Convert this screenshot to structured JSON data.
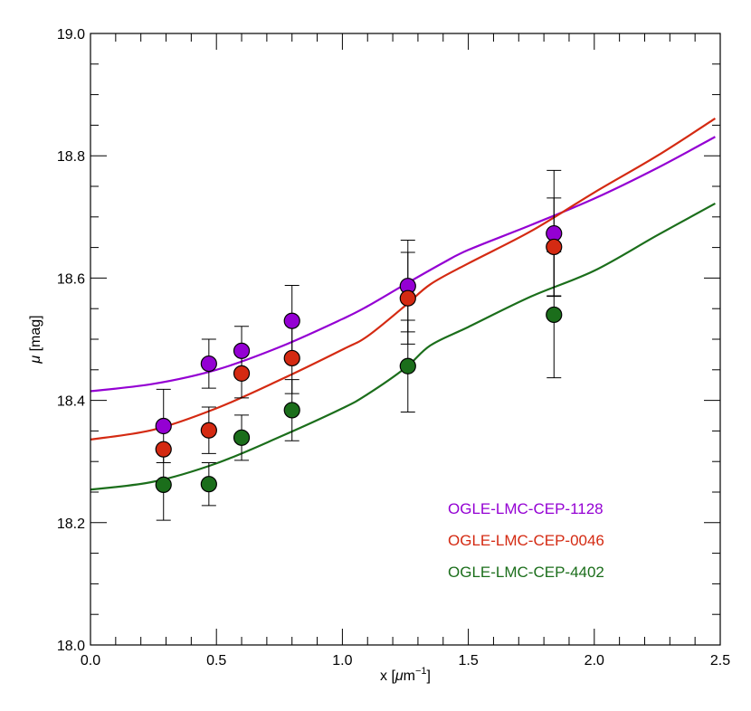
{
  "chart_data": {
    "type": "scatter",
    "title": "",
    "xlabel": {
      "base": "x [",
      "mu": "μ",
      "unit": "m",
      "sup": "−1",
      "close": "]"
    },
    "ylabel": {
      "mu": "μ",
      "rest": " [mag]"
    },
    "xlim": [
      0.0,
      2.5
    ],
    "ylim": [
      18.0,
      19.0
    ],
    "xticks": [
      0.0,
      0.5,
      1.0,
      1.5,
      2.0,
      2.5
    ],
    "xtick_labels": [
      "0.0",
      "0.5",
      "1.0",
      "1.5",
      "2.0",
      "2.5"
    ],
    "yticks": [
      18.0,
      18.2,
      18.4,
      18.6,
      18.8,
      19.0
    ],
    "ytick_labels": [
      "18.0",
      "18.2",
      "18.4",
      "18.6",
      "18.8",
      "19.0"
    ],
    "x_minor_step": 0.1,
    "y_minor_step": 0.05,
    "grid": false,
    "legend_position": "bottom-right",
    "series": [
      {
        "name": "OGLE-LMC-CEP-1128",
        "color": "#9400d3",
        "points": [
          {
            "x": 0.29,
            "y": 18.358,
            "err": 0.06
          },
          {
            "x": 0.47,
            "y": 18.46,
            "err": 0.04
          },
          {
            "x": 0.6,
            "y": 18.481,
            "err": 0.04
          },
          {
            "x": 0.8,
            "y": 18.53,
            "err": 0.058
          },
          {
            "x": 1.26,
            "y": 18.587,
            "err": 0.075
          },
          {
            "x": 1.84,
            "y": 18.673,
            "err": 0.103
          }
        ],
        "curve": [
          [
            0.0,
            18.415
          ],
          [
            0.25,
            18.427
          ],
          [
            0.5,
            18.45
          ],
          [
            0.75,
            18.487
          ],
          [
            1.0,
            18.533
          ],
          [
            1.1,
            18.554
          ],
          [
            1.25,
            18.59
          ],
          [
            1.4,
            18.625
          ],
          [
            1.5,
            18.646
          ],
          [
            1.75,
            18.687
          ],
          [
            2.0,
            18.73
          ],
          [
            2.25,
            18.78
          ],
          [
            2.48,
            18.831
          ]
        ]
      },
      {
        "name": "OGLE-LMC-CEP-0046",
        "color": "#d42a12",
        "points": [
          {
            "x": 0.29,
            "y": 18.32,
            "err": 0.0
          },
          {
            "x": 0.47,
            "y": 18.351,
            "err": 0.038
          },
          {
            "x": 0.6,
            "y": 18.444,
            "err": 0.04
          },
          {
            "x": 0.8,
            "y": 18.469,
            "err": 0.058
          },
          {
            "x": 1.26,
            "y": 18.567,
            "err": 0.075
          },
          {
            "x": 1.84,
            "y": 18.651,
            "err": 0.08
          }
        ],
        "curve": [
          [
            0.0,
            18.336
          ],
          [
            0.25,
            18.352
          ],
          [
            0.5,
            18.387
          ],
          [
            0.75,
            18.433
          ],
          [
            1.0,
            18.483
          ],
          [
            1.1,
            18.505
          ],
          [
            1.25,
            18.555
          ],
          [
            1.35,
            18.59
          ],
          [
            1.5,
            18.624
          ],
          [
            1.75,
            18.677
          ],
          [
            2.0,
            18.74
          ],
          [
            2.25,
            18.8
          ],
          [
            2.48,
            18.861
          ]
        ]
      },
      {
        "name": "OGLE-LMC-CEP-4402",
        "color": "#1b6e1b",
        "points": [
          {
            "x": 0.29,
            "y": 18.262,
            "err": 0.058
          },
          {
            "x": 0.47,
            "y": 18.263,
            "err": 0.035
          },
          {
            "x": 0.6,
            "y": 18.339,
            "err": 0.037
          },
          {
            "x": 0.8,
            "y": 18.384,
            "err": 0.05
          },
          {
            "x": 1.26,
            "y": 18.456,
            "err": 0.075
          },
          {
            "x": 1.84,
            "y": 18.54,
            "err": 0.103
          }
        ],
        "curve": [
          [
            0.0,
            18.254
          ],
          [
            0.25,
            18.267
          ],
          [
            0.5,
            18.297
          ],
          [
            0.75,
            18.34
          ],
          [
            1.0,
            18.387
          ],
          [
            1.1,
            18.41
          ],
          [
            1.25,
            18.453
          ],
          [
            1.35,
            18.49
          ],
          [
            1.5,
            18.52
          ],
          [
            1.75,
            18.57
          ],
          [
            2.0,
            18.612
          ],
          [
            2.25,
            18.67
          ],
          [
            2.48,
            18.722
          ]
        ]
      }
    ]
  }
}
